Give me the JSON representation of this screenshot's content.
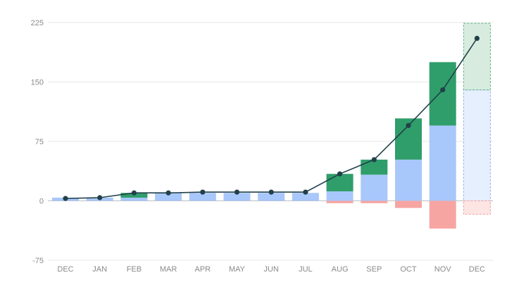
{
  "chart_data": {
    "type": "bar",
    "categories": [
      "DEC",
      "JAN",
      "FEB",
      "MAR",
      "APR",
      "MAY",
      "JUN",
      "JUL",
      "AUG",
      "SEP",
      "OCT",
      "NOV",
      "DEC"
    ],
    "y_ticks": [
      225,
      150,
      75,
      0,
      -75
    ],
    "ylim": [
      -75,
      225
    ],
    "grid": true,
    "series": [
      {
        "kind": "bar-base",
        "color": "#a8c7fa",
        "values": [
          4,
          4,
          4,
          10,
          10,
          10,
          10,
          10,
          12,
          33,
          52,
          95,
          140
        ]
      },
      {
        "kind": "bar-gain",
        "color": "#2f9e6a",
        "values": [
          0,
          0,
          6,
          0,
          0,
          0,
          0,
          0,
          22,
          19,
          52,
          80,
          84
        ]
      },
      {
        "kind": "bar-loss",
        "color": "#f7a5a2",
        "values": [
          0,
          0,
          0,
          0,
          0,
          0,
          0,
          0,
          -3,
          -3,
          -9,
          -35,
          -17
        ]
      },
      {
        "kind": "line",
        "color": "#22404a",
        "values": [
          3,
          4,
          10,
          10,
          11,
          11,
          11,
          11,
          34,
          52,
          95,
          140,
          205
        ]
      }
    ],
    "projected_index": 12,
    "projected_colors": {
      "base_fill": "#e6effe",
      "base_stroke": "#8fb2ea",
      "gain_fill": "#d7ecdf",
      "gain_stroke": "#5fb389",
      "loss_fill": "#fde5e4",
      "loss_stroke": "#f19e9a"
    },
    "colors": {
      "grid": "#e7e7e7",
      "zero_line": "#bdbdbd",
      "tick_text": "#8a8a8a"
    }
  }
}
